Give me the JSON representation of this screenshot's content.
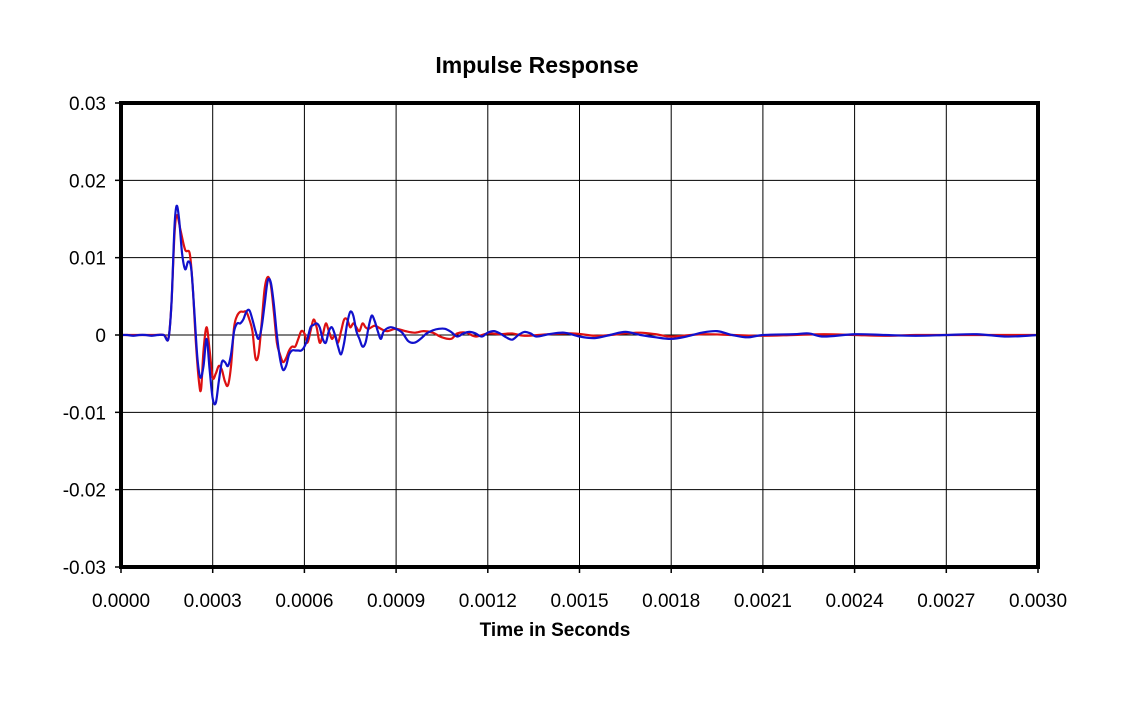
{
  "chart_data": {
    "type": "line",
    "title": "Impulse Response",
    "xlabel": "Time in Seconds",
    "ylabel": "",
    "xlim": [
      0,
      0.003
    ],
    "ylim": [
      -0.03,
      0.03
    ],
    "grid": true,
    "legend": "none",
    "x_ticks": [
      "0.0000",
      "0.0003",
      "0.0006",
      "0.0009",
      "0.0012",
      "0.0015",
      "0.0018",
      "0.0021",
      "0.0024",
      "0.0027",
      "0.0030"
    ],
    "y_ticks": [
      "0.03",
      "0.02",
      "0.01",
      "0",
      "-0.01",
      "-0.02",
      "-0.03"
    ],
    "series": [
      {
        "color": "#dd1111",
        "points": [
          [
            0.0,
            0.0
          ],
          [
            0.0001,
            0.0
          ],
          [
            0.00014,
            0.0
          ],
          [
            0.000155,
            -0.0005
          ],
          [
            0.000165,
            0.004
          ],
          [
            0.000175,
            0.013
          ],
          [
            0.000183,
            0.0155
          ],
          [
            0.000195,
            0.0135
          ],
          [
            0.00021,
            0.011
          ],
          [
            0.000225,
            0.0105
          ],
          [
            0.000235,
            0.006
          ],
          [
            0.000245,
            -0.001
          ],
          [
            0.000255,
            -0.006
          ],
          [
            0.000262,
            -0.007
          ],
          [
            0.00027,
            -0.002
          ],
          [
            0.00028,
            0.001
          ],
          [
            0.00029,
            -0.002
          ],
          [
            0.0003,
            -0.0055
          ],
          [
            0.00031,
            -0.005
          ],
          [
            0.00032,
            -0.004
          ],
          [
            0.00033,
            -0.0045
          ],
          [
            0.00034,
            -0.006
          ],
          [
            0.00035,
            -0.0065
          ],
          [
            0.00036,
            -0.004
          ],
          [
            0.00037,
            0.001
          ],
          [
            0.00038,
            0.0025
          ],
          [
            0.00039,
            0.003
          ],
          [
            0.0004,
            0.003
          ],
          [
            0.00041,
            0.003
          ],
          [
            0.00042,
            0.002
          ],
          [
            0.00043,
            0.0005
          ],
          [
            0.00044,
            -0.003
          ],
          [
            0.00045,
            -0.0025
          ],
          [
            0.00046,
            0.0015
          ],
          [
            0.00047,
            0.006
          ],
          [
            0.00048,
            0.0075
          ],
          [
            0.00049,
            0.0065
          ],
          [
            0.0005,
            0.003
          ],
          [
            0.00051,
            -0.001
          ],
          [
            0.00052,
            -0.0025
          ],
          [
            0.00053,
            -0.0035
          ],
          [
            0.00054,
            -0.003
          ],
          [
            0.00055,
            -0.002
          ],
          [
            0.00056,
            -0.0015
          ],
          [
            0.00057,
            -0.0015
          ],
          [
            0.00058,
            -0.0005
          ],
          [
            0.00059,
            0.0005
          ],
          [
            0.0006,
            0.0002
          ],
          [
            0.00061,
            -0.001
          ],
          [
            0.00062,
            0.0005
          ],
          [
            0.00063,
            0.002
          ],
          [
            0.00064,
            0.001
          ],
          [
            0.00065,
            -0.001
          ],
          [
            0.00066,
            0.0
          ],
          [
            0.00067,
            0.0015
          ],
          [
            0.00068,
            0.0005
          ],
          [
            0.00069,
            -0.0005
          ],
          [
            0.0007,
            0.0
          ],
          [
            0.00071,
            -0.001
          ],
          [
            0.00072,
            0.0005
          ],
          [
            0.00073,
            0.002
          ],
          [
            0.00074,
            0.002
          ],
          [
            0.00075,
            0.001
          ],
          [
            0.00076,
            0.0015
          ],
          [
            0.00077,
            0.001
          ],
          [
            0.00078,
            0.0005
          ],
          [
            0.00079,
            0.0015
          ],
          [
            0.0008,
            0.001
          ],
          [
            0.00081,
            0.0008
          ],
          [
            0.00083,
            0.0012
          ],
          [
            0.00085,
            0.0008
          ],
          [
            0.00087,
            0.0005
          ],
          [
            0.0009,
            0.0008
          ],
          [
            0.00093,
            0.0005
          ],
          [
            0.00096,
            0.0003
          ],
          [
            0.00099,
            0.0005
          ],
          [
            0.00102,
            0.0003
          ],
          [
            0.00105,
            -0.0003
          ],
          [
            0.00108,
            -0.0005
          ],
          [
            0.0011,
            0.0002
          ],
          [
            0.00113,
            0.0003
          ],
          [
            0.00116,
            -0.0002
          ],
          [
            0.0012,
            0.0002
          ],
          [
            0.00124,
            0.0001
          ],
          [
            0.00128,
            0.0002
          ],
          [
            0.00132,
            -0.0001
          ],
          [
            0.0014,
            0.0001
          ],
          [
            0.00148,
            0.0002
          ],
          [
            0.00155,
            -0.0001
          ],
          [
            0.0016,
            0.0
          ],
          [
            0.00165,
            0.0002
          ],
          [
            0.0017,
            0.0003
          ],
          [
            0.00175,
            0.0001
          ],
          [
            0.0018,
            -0.0002
          ],
          [
            0.0019,
            0.0001
          ],
          [
            0.002,
            0.0
          ],
          [
            0.0021,
            -0.0001
          ],
          [
            0.0022,
            0.0
          ],
          [
            0.0023,
            0.0001
          ],
          [
            0.0024,
            0.0
          ],
          [
            0.0025,
            -0.0001
          ],
          [
            0.0026,
            0.0
          ],
          [
            0.0027,
            0.0
          ],
          [
            0.0028,
            0.0
          ],
          [
            0.0029,
            0.0
          ],
          [
            0.003,
            0.0
          ]
        ]
      },
      {
        "color": "#1111cc",
        "points": [
          [
            0.0,
            0.0
          ],
          [
            2e-05,
            0.0
          ],
          [
            4e-05,
            -0.0001
          ],
          [
            6e-05,
            0.0
          ],
          [
            8e-05,
            0.0
          ],
          [
            0.0001,
            -0.0001
          ],
          [
            0.00012,
            0.0
          ],
          [
            0.00014,
            0.0
          ],
          [
            0.000155,
            -0.0005
          ],
          [
            0.000165,
            0.004
          ],
          [
            0.000175,
            0.014
          ],
          [
            0.000182,
            0.0167
          ],
          [
            0.00019,
            0.015
          ],
          [
            0.0002,
            0.0105
          ],
          [
            0.00021,
            0.0085
          ],
          [
            0.00022,
            0.0095
          ],
          [
            0.00023,
            0.0085
          ],
          [
            0.00024,
            0.003
          ],
          [
            0.00025,
            -0.003
          ],
          [
            0.00026,
            -0.0055
          ],
          [
            0.00027,
            -0.004
          ],
          [
            0.00028,
            -0.0005
          ],
          [
            0.00029,
            -0.0045
          ],
          [
            0.0003,
            -0.0082
          ],
          [
            0.00031,
            -0.0088
          ],
          [
            0.00032,
            -0.006
          ],
          [
            0.00033,
            -0.0035
          ],
          [
            0.00034,
            -0.0035
          ],
          [
            0.00035,
            -0.004
          ],
          [
            0.00036,
            -0.0025
          ],
          [
            0.00037,
            0.0005
          ],
          [
            0.00038,
            0.0015
          ],
          [
            0.00039,
            0.0015
          ],
          [
            0.0004,
            0.002
          ],
          [
            0.00041,
            0.003
          ],
          [
            0.00042,
            0.0032
          ],
          [
            0.00043,
            0.002
          ],
          [
            0.00044,
            0.0005
          ],
          [
            0.00045,
            -0.0005
          ],
          [
            0.00046,
            0.001
          ],
          [
            0.00047,
            0.004
          ],
          [
            0.00048,
            0.007
          ],
          [
            0.00049,
            0.0068
          ],
          [
            0.0005,
            0.004
          ],
          [
            0.00051,
            0.0
          ],
          [
            0.00052,
            -0.003
          ],
          [
            0.00053,
            -0.0045
          ],
          [
            0.00054,
            -0.004
          ],
          [
            0.00055,
            -0.0025
          ],
          [
            0.00056,
            -0.002
          ],
          [
            0.00057,
            -0.002
          ],
          [
            0.00058,
            -0.002
          ],
          [
            0.00059,
            -0.002
          ],
          [
            0.0006,
            -0.0015
          ],
          [
            0.00061,
            -0.0005
          ],
          [
            0.00062,
            0.001
          ],
          [
            0.00063,
            0.0013
          ],
          [
            0.00064,
            0.0015
          ],
          [
            0.00065,
            0.001
          ],
          [
            0.00066,
            -0.0005
          ],
          [
            0.00067,
            -0.001
          ],
          [
            0.00068,
            0.0005
          ],
          [
            0.00069,
            0.001
          ],
          [
            0.0007,
            0.0
          ],
          [
            0.00071,
            -0.0015
          ],
          [
            0.00072,
            -0.0025
          ],
          [
            0.00073,
            -0.001
          ],
          [
            0.00074,
            0.0015
          ],
          [
            0.00075,
            0.003
          ],
          [
            0.00076,
            0.0025
          ],
          [
            0.00077,
            0.0005
          ],
          [
            0.00078,
            -0.0005
          ],
          [
            0.00079,
            -0.0015
          ],
          [
            0.0008,
            -0.001
          ],
          [
            0.00081,
            0.001
          ],
          [
            0.00082,
            0.0025
          ],
          [
            0.00083,
            0.0018
          ],
          [
            0.00084,
            0.0005
          ],
          [
            0.00085,
            -0.0005
          ],
          [
            0.00086,
            0.0005
          ],
          [
            0.00088,
            0.001
          ],
          [
            0.0009,
            0.0008
          ],
          [
            0.00092,
            0.0003
          ],
          [
            0.00094,
            -0.0008
          ],
          [
            0.00096,
            -0.001
          ],
          [
            0.00098,
            -0.0005
          ],
          [
            0.001,
            0.0002
          ],
          [
            0.00102,
            0.0006
          ],
          [
            0.00104,
            0.0008
          ],
          [
            0.00106,
            0.0008
          ],
          [
            0.00108,
            0.0004
          ],
          [
            0.0011,
            -0.0002
          ],
          [
            0.00112,
            0.0002
          ],
          [
            0.00114,
            0.0004
          ],
          [
            0.00116,
            0.0002
          ],
          [
            0.00118,
            -0.0002
          ],
          [
            0.0012,
            0.0003
          ],
          [
            0.00122,
            0.0005
          ],
          [
            0.00124,
            0.0002
          ],
          [
            0.00126,
            -0.0003
          ],
          [
            0.00128,
            -0.0006
          ],
          [
            0.0013,
            0.0
          ],
          [
            0.00132,
            0.0004
          ],
          [
            0.00134,
            0.0002
          ],
          [
            0.00136,
            -0.0002
          ],
          [
            0.0014,
            0.0001
          ],
          [
            0.00145,
            0.0003
          ],
          [
            0.0015,
            -0.0002
          ],
          [
            0.00155,
            -0.0004
          ],
          [
            0.0016,
            0.0
          ],
          [
            0.00165,
            0.0004
          ],
          [
            0.0017,
            0.0
          ],
          [
            0.00175,
            -0.0003
          ],
          [
            0.0018,
            -0.0005
          ],
          [
            0.00185,
            -0.0002
          ],
          [
            0.0019,
            0.0003
          ],
          [
            0.00195,
            0.0005
          ],
          [
            0.002,
            0.0
          ],
          [
            0.00205,
            -0.0003
          ],
          [
            0.0021,
            0.0
          ],
          [
            0.0022,
            0.0001
          ],
          [
            0.00225,
            0.0002
          ],
          [
            0.0023,
            -0.0002
          ],
          [
            0.0024,
            0.0001
          ],
          [
            0.0025,
            0.0
          ],
          [
            0.0026,
            -0.0001
          ],
          [
            0.0027,
            0.0
          ],
          [
            0.0028,
            0.0001
          ],
          [
            0.0029,
            -0.0002
          ],
          [
            0.003,
            0.0
          ]
        ]
      }
    ]
  }
}
